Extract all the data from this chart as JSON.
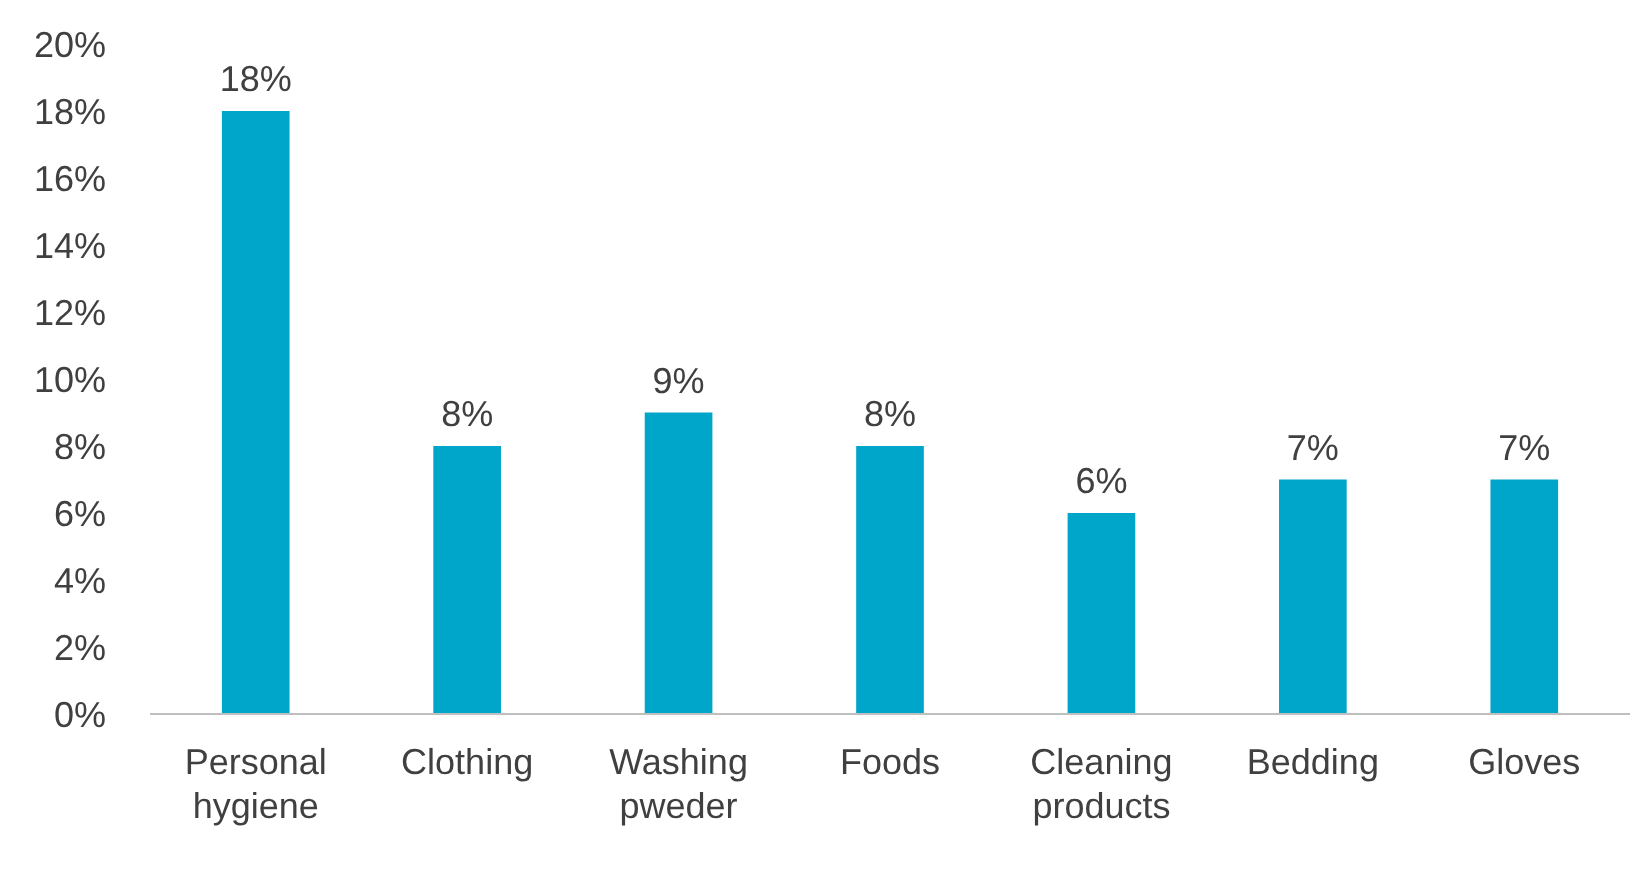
{
  "chart_data": {
    "type": "bar",
    "categories": [
      "Personal hygiene",
      "Clothing",
      "Washing pweder",
      "Foods",
      "Cleaning products",
      "Bedding",
      "Gloves"
    ],
    "values": [
      18,
      8,
      9,
      8,
      6,
      7,
      7
    ],
    "color": "#00a6c9",
    "value_labels": [
      "18%",
      "8%",
      "9%",
      "8%",
      "6%",
      "7%",
      "7%"
    ],
    "ylim": [
      0,
      20
    ],
    "yticks": [
      {
        "value": 0,
        "label": "0%"
      },
      {
        "value": 2,
        "label": "2%"
      },
      {
        "value": 4,
        "label": "4%"
      },
      {
        "value": 6,
        "label": "6%"
      },
      {
        "value": 8,
        "label": "8%"
      },
      {
        "value": 10,
        "label": "10%"
      },
      {
        "value": 12,
        "label": "12%"
      },
      {
        "value": 14,
        "label": "14%"
      },
      {
        "value": 16,
        "label": "16%"
      },
      {
        "value": 18,
        "label": "18%"
      },
      {
        "value": 20,
        "label": "20%"
      }
    ],
    "grid": false
  }
}
